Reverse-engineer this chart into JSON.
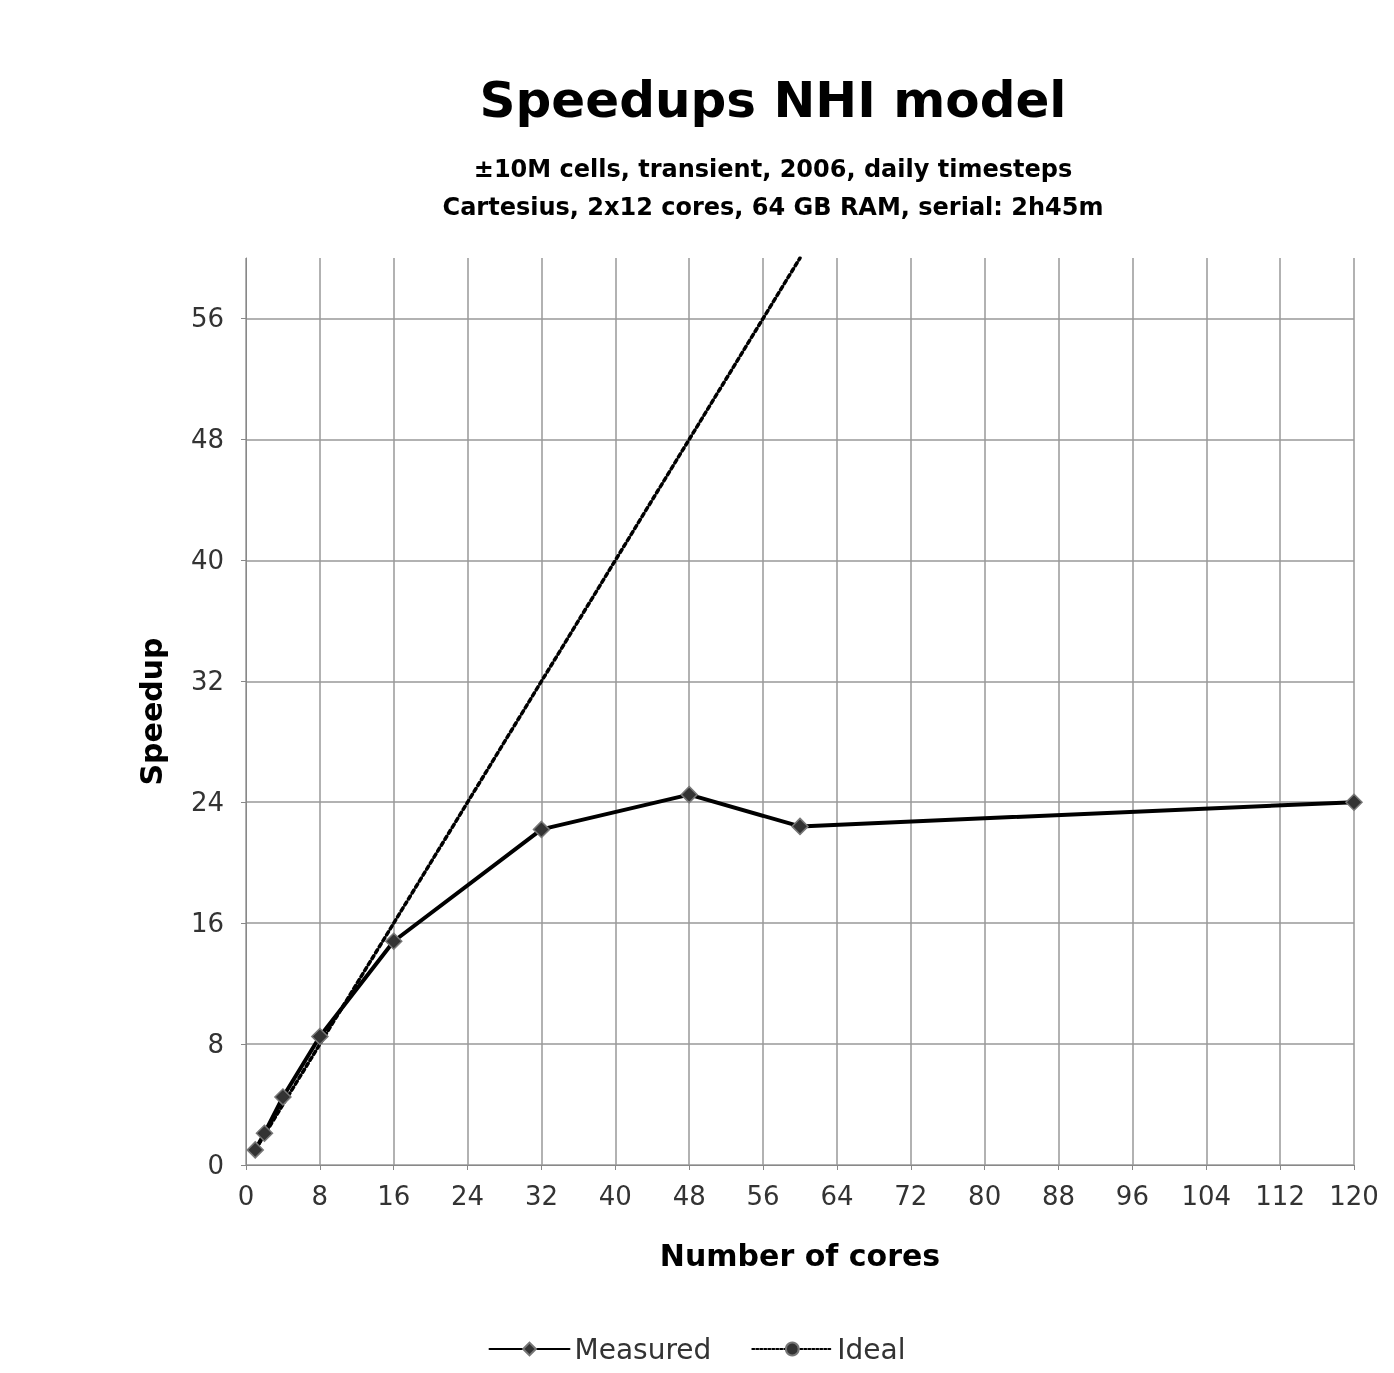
{
  "chart_data": {
    "type": "line",
    "title": "Speedups NHI model",
    "subtitle": "±10M cells, transient, 2006, daily timesteps\nCartesius, 2x12 cores, 64 GB RAM, serial: 2h45m",
    "xlabel": "Number of cores",
    "ylabel": "Speedup",
    "xlim": [
      0,
      120
    ],
    "xticks": [
      0,
      8,
      16,
      24,
      32,
      40,
      48,
      56,
      64,
      72,
      80,
      88,
      96,
      104,
      112,
      120
    ],
    "ylim": [
      0,
      60
    ],
    "yticks": [
      0,
      8,
      16,
      24,
      32,
      40,
      48,
      56
    ],
    "grid": true,
    "legend": "bottom",
    "series": [
      {
        "name": "Measured",
        "color": "#000000",
        "marker": "diamond",
        "line_style": "solid",
        "x": [
          1,
          2,
          4,
          8,
          16,
          32,
          48,
          60,
          120
        ],
        "values": [
          1,
          2.1,
          4.5,
          8.5,
          14.8,
          22.2,
          24.5,
          22.4,
          24
        ]
      },
      {
        "name": "Ideal",
        "color": "#000000",
        "marker": "none",
        "line_style": "dotted",
        "x": [
          1,
          60
        ],
        "values": [
          1,
          60
        ]
      }
    ]
  }
}
